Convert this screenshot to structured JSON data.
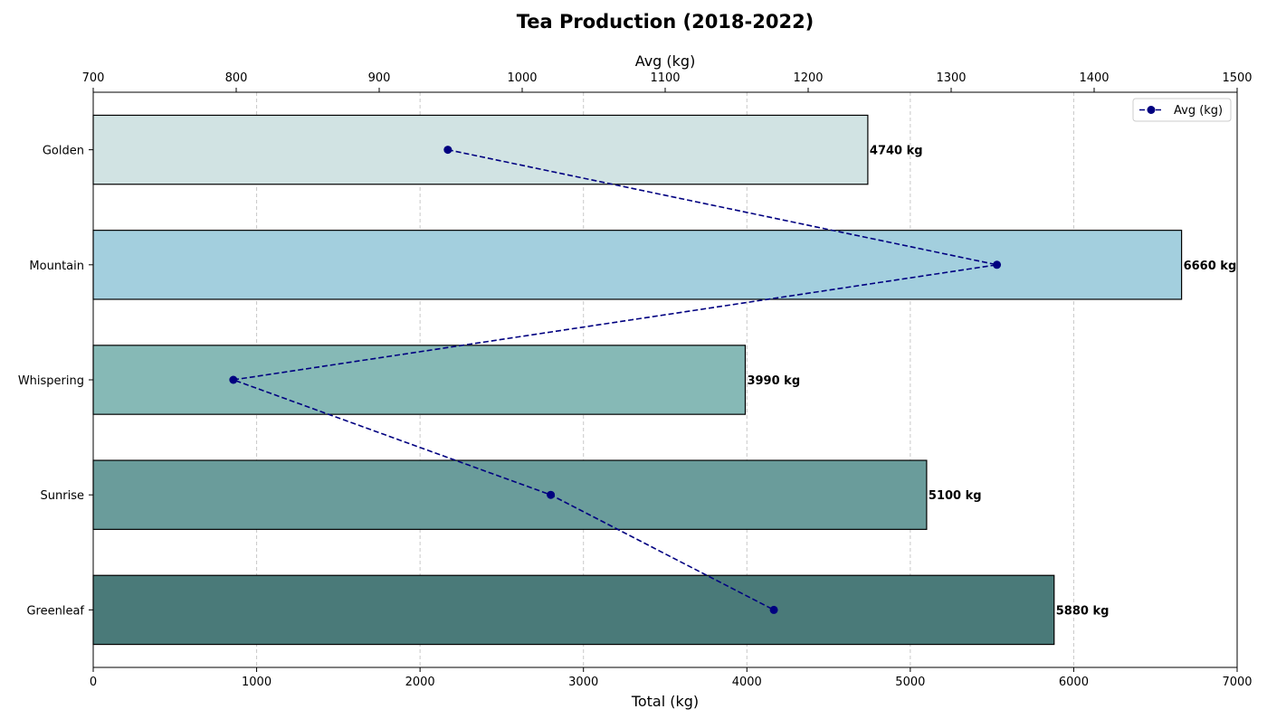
{
  "chart_data": {
    "type": "bar",
    "orientation": "horizontal",
    "title": "Tea Production (2018-2022)",
    "xlabel": "Total (kg)",
    "x2label": "Avg (kg)",
    "xlim": [
      0,
      7000
    ],
    "x2lim": [
      700,
      1500
    ],
    "xticks": [
      0,
      1000,
      2000,
      3000,
      4000,
      5000,
      6000,
      7000
    ],
    "x2ticks": [
      700,
      800,
      900,
      1000,
      1100,
      1200,
      1300,
      1400,
      1500
    ],
    "grid": "vertical dashed",
    "legend_position": "top-right",
    "categories": [
      "Golden",
      "Mountain",
      "Whispering",
      "Sunrise",
      "Greenleaf"
    ],
    "series": [
      {
        "name": "Total (kg)",
        "type": "bar",
        "values": [
          4740,
          6660,
          3990,
          5100,
          5880
        ],
        "labels": [
          "4740 kg",
          "6660 kg",
          "3990 kg",
          "5100 kg",
          "5880 kg"
        ],
        "colors": [
          "#d1e3e3",
          "#a3cfde",
          "#86b9b6",
          "#6a9c9b",
          "#4a7a79"
        ]
      },
      {
        "name": "Avg (kg)",
        "type": "line",
        "values": [
          948,
          1332,
          798,
          1020,
          1176
        ],
        "color": "#000080",
        "style": "dashed"
      }
    ]
  }
}
